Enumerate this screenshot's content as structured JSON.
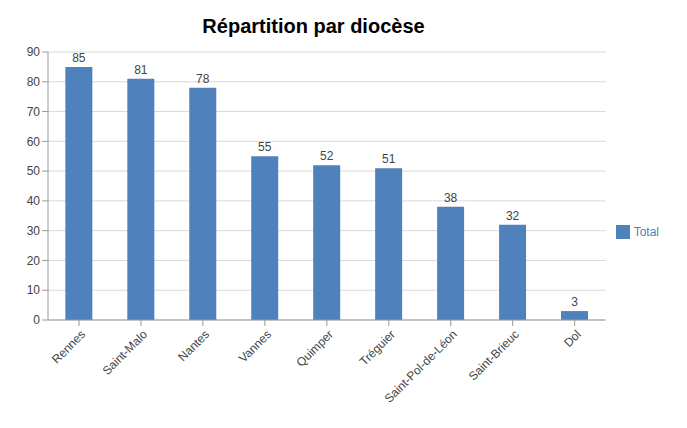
{
  "chart_data": {
    "type": "bar",
    "title": "Répartition par diocèse",
    "categories": [
      "Rennes",
      "Saint-Malo",
      "Nantes",
      "Vannes",
      "Quimper",
      "Tréguier",
      "Saint-Pol-de-Léon",
      "Saint-Brieuc",
      "Dol"
    ],
    "series": [
      {
        "name": "Total",
        "color": "#4f81bd",
        "values": [
          85,
          81,
          78,
          55,
          52,
          51,
          38,
          32,
          3
        ]
      }
    ],
    "ylim": [
      0,
      90
    ],
    "yticks": [
      0,
      10,
      20,
      30,
      40,
      50,
      60,
      70,
      80,
      90
    ],
    "grid": true,
    "legend": "right",
    "data_labels": true
  }
}
